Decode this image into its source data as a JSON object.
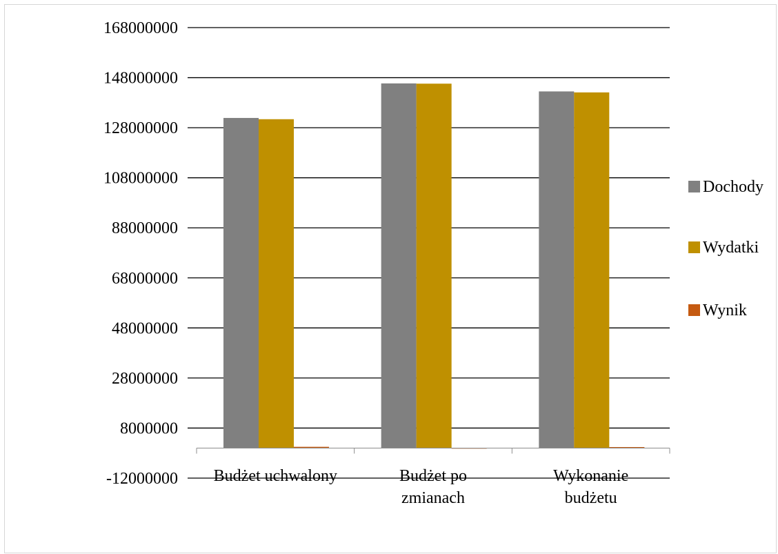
{
  "chart_data": {
    "type": "bar",
    "categories": [
      [
        "Budżet uchwalony"
      ],
      [
        "Budżet po",
        "zmianach"
      ],
      [
        "Wykonanie",
        "budżetu"
      ]
    ],
    "series": [
      {
        "name": "Dochody",
        "color": "#808080",
        "values": [
          131900000,
          145700000,
          142500000
        ]
      },
      {
        "name": "Wydatki",
        "color": "#bf9000",
        "values": [
          131400000,
          145600000,
          142100000
        ]
      },
      {
        "name": "Wynik",
        "color": "#c55a11",
        "values": [
          500000,
          100000,
          400000
        ]
      }
    ],
    "y_ticks": [
      "168000000",
      "148000000",
      "128000000",
      "108000000",
      "88000000",
      "68000000",
      "48000000",
      "28000000",
      "8000000",
      "-12000000"
    ],
    "y_tick_values": [
      168000000,
      148000000,
      128000000,
      108000000,
      88000000,
      68000000,
      48000000,
      28000000,
      8000000,
      -12000000
    ],
    "ylim": [
      -12000000,
      168000000
    ],
    "grid": true,
    "legend_position": "right",
    "title": "",
    "xlabel": "",
    "ylabel": ""
  }
}
